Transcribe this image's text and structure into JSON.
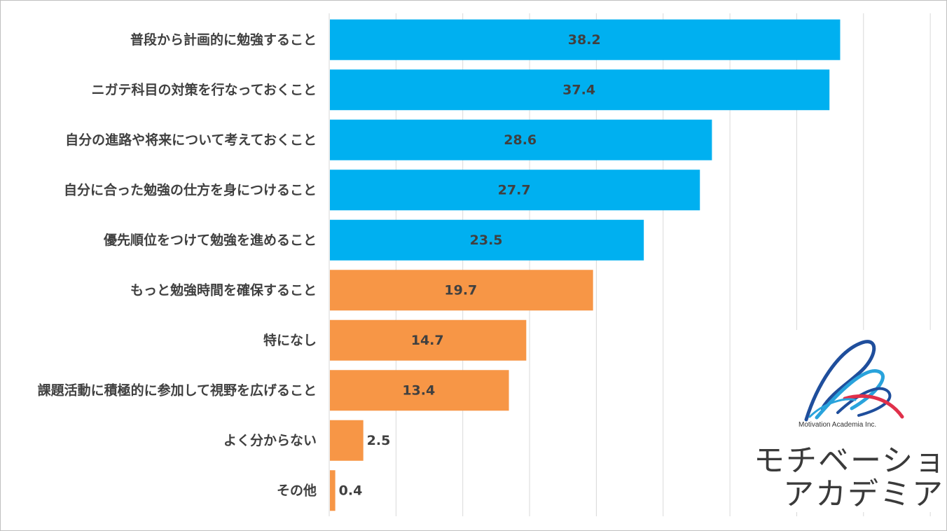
{
  "chart_data": {
    "type": "bar",
    "orientation": "horizontal",
    "categories": [
      "普段から計画的に勉強すること",
      "ニガテ科目の対策を行なっておくこと",
      "自分の進路や将来について考えておくこと",
      "自分に合った勉強の仕方を身につけること",
      "優先順位をつけて勉強を進めること",
      "もっと勉強時間を確保すること",
      "特になし",
      "課題活動に積極的に参加して視野を広げること",
      "よく分からない",
      "その他"
    ],
    "values": [
      38.2,
      37.4,
      28.6,
      27.7,
      23.5,
      19.7,
      14.7,
      13.4,
      2.5,
      0.4
    ],
    "value_labels": [
      "38.2",
      "37.4",
      "28.6",
      "27.7",
      "23.5",
      "19.7",
      "14.7",
      "13.4",
      "2.5",
      "0.4"
    ],
    "bar_colors": [
      "#00b0f0",
      "#00b0f0",
      "#00b0f0",
      "#00b0f0",
      "#00b0f0",
      "#f79646",
      "#f79646",
      "#f79646",
      "#f79646",
      "#f79646"
    ],
    "xlim": [
      0,
      45
    ],
    "grid": true,
    "gridline_step": 5,
    "legend": "none",
    "title": "",
    "xlabel": "",
    "ylabel": ""
  },
  "logo": {
    "company_en": "Motivation Academia Inc.",
    "line1": "モチベーション",
    "line2": "アカデミア",
    "colors": [
      "#1f4e9c",
      "#29a3dc",
      "#e0304a"
    ]
  }
}
